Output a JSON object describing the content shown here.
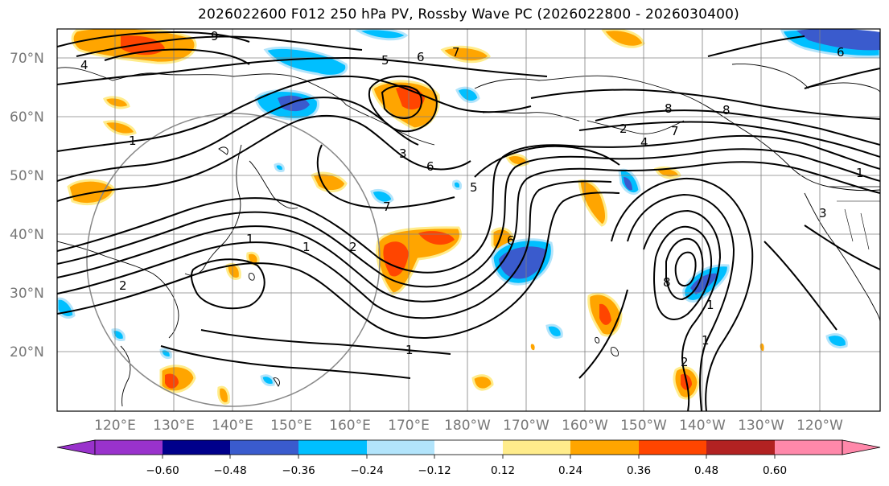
{
  "title": "2026022600 F012 250 hPa PV, Rossby Wave PC (2026022800 - 2026030400)",
  "map": {
    "lat_ticks": [
      "70°N",
      "60°N",
      "50°N",
      "40°N",
      "30°N",
      "20°N"
    ],
    "lon_ticks": [
      "120°E",
      "130°E",
      "140°E",
      "150°E",
      "160°E",
      "170°E",
      "180°W",
      "170°W",
      "160°W",
      "150°W",
      "140°W",
      "130°W",
      "120°W"
    ],
    "contour_labels": [
      "9",
      "4",
      "5",
      "6",
      "7",
      "1",
      "3",
      "5",
      "6",
      "7",
      "8",
      "1",
      "1",
      "1",
      "2",
      "2",
      "6",
      "7",
      "8",
      "1",
      "1",
      "2",
      "1",
      "4",
      "2",
      "3",
      "6",
      "8"
    ],
    "frame_color": "#000000",
    "grid_color": "#808080"
  },
  "colorbar": {
    "colors": [
      "#9932cc",
      "#00008b",
      "#3a5bcd",
      "#00bfff",
      "#b2e4fb",
      "#ffffff",
      "#ffec8b",
      "#ffa500",
      "#ff4500",
      "#b22222",
      "#ff88aa"
    ],
    "tick_labels": [
      "−0.60",
      "−0.48",
      "−0.36",
      "−0.24",
      "−0.12",
      "0.12",
      "0.24",
      "0.36",
      "0.48",
      "0.60"
    ]
  }
}
